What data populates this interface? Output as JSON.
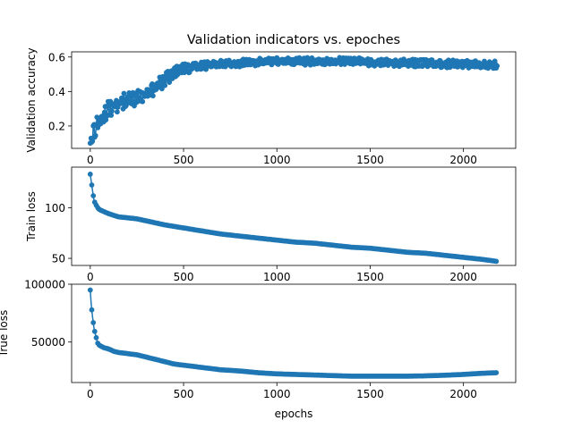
{
  "title": "Validation indicators vs. epoches",
  "chart_data": [
    {
      "type": "line",
      "title": "Validation indicators vs. epoches",
      "xlabel": "",
      "ylabel": "Validation accuracy",
      "xlim": [
        -100,
        2280
      ],
      "ylim": [
        0.07,
        0.63
      ],
      "xticks": [
        0,
        500,
        1000,
        1500,
        2000
      ],
      "yticks": [
        0.2,
        0.4,
        0.6
      ],
      "ytick_labels": [
        "0.2",
        "0.4",
        "0.6"
      ],
      "color": "#1f77b4",
      "markers": true,
      "series": [
        {
          "x": [
            0,
            10,
            20,
            30,
            50,
            75,
            100,
            125,
            150,
            175,
            200,
            250,
            300,
            350,
            400,
            450,
            500,
            550,
            600,
            700,
            800,
            900,
            1000,
            1100,
            1200,
            1300,
            1400,
            1500,
            1600,
            1700,
            1800,
            1900,
            2000,
            2100,
            2180
          ],
          "y": [
            0.1,
            0.14,
            0.17,
            0.19,
            0.23,
            0.27,
            0.3,
            0.32,
            0.33,
            0.34,
            0.34,
            0.36,
            0.38,
            0.42,
            0.47,
            0.51,
            0.53,
            0.54,
            0.55,
            0.56,
            0.565,
            0.57,
            0.575,
            0.575,
            0.575,
            0.575,
            0.575,
            0.57,
            0.57,
            0.565,
            0.565,
            0.56,
            0.56,
            0.555,
            0.555
          ],
          "band": [
            0.03,
            0.04,
            0.05,
            0.05,
            0.05,
            0.05,
            0.05,
            0.05,
            0.05,
            0.05,
            0.05,
            0.05,
            0.05,
            0.05,
            0.04,
            0.035,
            0.03,
            0.025,
            0.025,
            0.022,
            0.022,
            0.022,
            0.022,
            0.022,
            0.022,
            0.022,
            0.022,
            0.022,
            0.022,
            0.022,
            0.022,
            0.022,
            0.022,
            0.022,
            0.022
          ]
        }
      ]
    },
    {
      "type": "line",
      "title": "",
      "xlabel": "",
      "ylabel": "Train loss",
      "xlim": [
        -100,
        2280
      ],
      "ylim": [
        43,
        140
      ],
      "xticks": [
        0,
        500,
        1000,
        1500,
        2000
      ],
      "yticks": [
        50,
        100
      ],
      "ytick_labels": [
        "50",
        "100"
      ],
      "color": "#1f77b4",
      "markers": true,
      "series": [
        {
          "x": [
            0,
            5,
            10,
            15,
            20,
            30,
            40,
            50,
            75,
            100,
            150,
            200,
            250,
            300,
            350,
            400,
            500,
            600,
            700,
            800,
            900,
            1000,
            1100,
            1200,
            1300,
            1400,
            1500,
            1600,
            1700,
            1800,
            1900,
            2000,
            2100,
            2180
          ],
          "y": [
            133,
            126,
            120,
            113,
            107,
            103,
            100,
            98,
            96,
            94,
            91,
            90,
            89,
            87,
            85,
            83,
            80,
            77,
            74,
            72,
            70,
            68,
            66,
            65,
            63,
            61,
            60,
            58,
            56,
            55,
            53,
            51,
            49,
            47
          ],
          "band": [
            0,
            0,
            0,
            0,
            0,
            0,
            0,
            0,
            0,
            0,
            0,
            0,
            0,
            0,
            0,
            0,
            0,
            0,
            0,
            0,
            0,
            0,
            0,
            0,
            0,
            0,
            0,
            0,
            0,
            0,
            0,
            0,
            0,
            0
          ]
        }
      ]
    },
    {
      "type": "line",
      "title": "",
      "xlabel": "epochs",
      "ylabel": "True loss",
      "xlim": [
        -100,
        2280
      ],
      "ylim": [
        15000,
        100000
      ],
      "xticks": [
        0,
        500,
        1000,
        1500,
        2000
      ],
      "yticks": [
        50000,
        100000
      ],
      "ytick_labels": [
        "50000",
        "100000"
      ],
      "color": "#1f77b4",
      "markers": true,
      "series": [
        {
          "x": [
            0,
            5,
            10,
            15,
            20,
            30,
            40,
            50,
            75,
            100,
            125,
            150,
            200,
            250,
            300,
            350,
            400,
            450,
            500,
            600,
            700,
            800,
            900,
            1000,
            1100,
            1200,
            1300,
            1400,
            1500,
            1600,
            1700,
            1800,
            1900,
            2000,
            2100,
            2180
          ],
          "y": [
            95000,
            82000,
            75000,
            68000,
            62000,
            55000,
            49000,
            47000,
            45000,
            44000,
            42000,
            41000,
            40000,
            39000,
            37000,
            35000,
            33000,
            31000,
            30000,
            28000,
            26000,
            25000,
            23500,
            22500,
            22000,
            21500,
            21000,
            20500,
            20500,
            20500,
            20500,
            20800,
            21300,
            22000,
            23000,
            23500
          ],
          "band": [
            0,
            0,
            0,
            0,
            0,
            0,
            0,
            0,
            0,
            0,
            0,
            0,
            0,
            0,
            0,
            0,
            0,
            0,
            0,
            0,
            0,
            0,
            0,
            0,
            0,
            0,
            0,
            0,
            0,
            0,
            0,
            0,
            0,
            0,
            0,
            0
          ]
        }
      ]
    }
  ]
}
